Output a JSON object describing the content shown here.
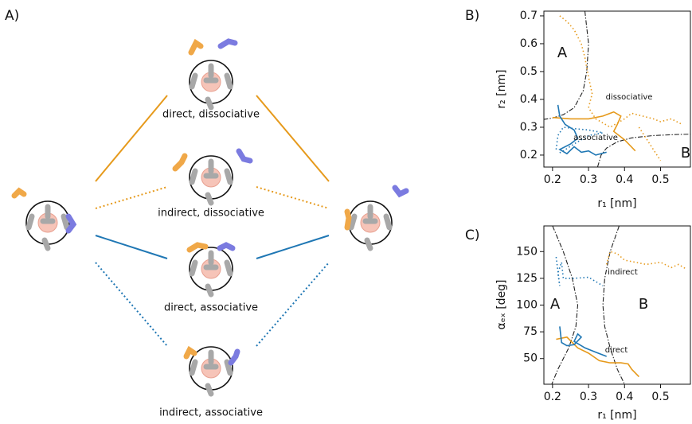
{
  "panel_labels": [
    "A)",
    "B)",
    "C)"
  ],
  "diagram": {
    "captions": [
      "direct, dissociative",
      "indirect, dissociative",
      "direct, associative",
      "indirect, associative"
    ]
  },
  "chart_data": [
    {
      "type": "line",
      "x_label": "r₁ [nm]",
      "y_label": "r₂ [nm]",
      "xlim": [
        0.176,
        0.583
      ],
      "ylim": [
        0.157,
        0.717
      ],
      "xticks": [
        0.2,
        0.3,
        0.4,
        0.5
      ],
      "yticks": [
        0.2,
        0.3,
        0.4,
        0.5,
        0.6,
        0.7
      ],
      "annotations": [
        "A",
        "B",
        "dissociative",
        "associative"
      ],
      "series": [
        {
          "color": "#222222",
          "dash": "dashed",
          "x": [
            0.29,
            0.3,
            0.295,
            0.285,
            0.26,
            0.23,
            0.2,
            0.176
          ],
          "values": [
            0.717,
            0.6,
            0.5,
            0.43,
            0.37,
            0.345,
            0.333,
            0.328
          ]
        },
        {
          "color": "#222222",
          "dash": "dashed",
          "x": [
            0.325,
            0.335,
            0.35,
            0.38,
            0.42,
            0.48,
            0.55,
            0.583
          ],
          "values": [
            0.157,
            0.2,
            0.225,
            0.248,
            0.262,
            0.27,
            0.274,
            0.275
          ]
        },
        {
          "color": "#e69a1c",
          "dash": "dotted",
          "x": [
            0.22,
            0.24,
            0.26,
            0.28,
            0.29,
            0.3,
            0.31,
            0.3,
            0.32,
            0.36,
            0.4,
            0.42,
            0.45,
            0.48,
            0.5,
            0.53,
            0.56
          ],
          "values": [
            0.7,
            0.68,
            0.65,
            0.6,
            0.55,
            0.48,
            0.42,
            0.37,
            0.33,
            0.3,
            0.33,
            0.35,
            0.34,
            0.33,
            0.32,
            0.33,
            0.31
          ]
        },
        {
          "color": "#e69a1c",
          "dash": "dotted",
          "x": [
            0.44,
            0.46,
            0.48,
            0.5
          ],
          "values": [
            0.3,
            0.26,
            0.22,
            0.18
          ]
        },
        {
          "color": "#e69a1c",
          "dash": "solid",
          "x": [
            0.2,
            0.25,
            0.3,
            0.34,
            0.37,
            0.39,
            0.38,
            0.37,
            0.4,
            0.43
          ],
          "values": [
            0.335,
            0.33,
            0.33,
            0.34,
            0.355,
            0.34,
            0.31,
            0.285,
            0.255,
            0.215
          ]
        },
        {
          "color": "#1f77b4",
          "dash": "dotted",
          "x": [
            0.21,
            0.215,
            0.23,
            0.26,
            0.3,
            0.34,
            0.3,
            0.26,
            0.23,
            0.215
          ],
          "values": [
            0.22,
            0.27,
            0.3,
            0.295,
            0.29,
            0.28,
            0.27,
            0.24,
            0.215,
            0.205
          ]
        },
        {
          "color": "#1f77b4",
          "dash": "solid",
          "x": [
            0.215,
            0.22,
            0.235,
            0.26,
            0.27,
            0.25,
            0.22,
            0.24,
            0.26,
            0.28,
            0.3,
            0.32,
            0.35
          ],
          "values": [
            0.38,
            0.34,
            0.31,
            0.29,
            0.26,
            0.24,
            0.22,
            0.205,
            0.23,
            0.21,
            0.215,
            0.2,
            0.21
          ]
        }
      ]
    },
    {
      "type": "line",
      "x_label": "r₁ [nm]",
      "y_label": "αₑₓ [deg]",
      "xlim": [
        0.176,
        0.583
      ],
      "ylim": [
        26,
        174
      ],
      "xticks": [
        0.2,
        0.3,
        0.4,
        0.5
      ],
      "yticks": [
        50,
        75,
        100,
        125,
        150
      ],
      "annotations": [
        "A",
        "B",
        "indirect",
        "direct"
      ],
      "series": [
        {
          "color": "#222222",
          "dash": "dashed",
          "x": [
            0.2,
            0.23,
            0.255,
            0.27,
            0.265,
            0.245,
            0.215,
            0.198
          ],
          "values": [
            174,
            150,
            125,
            100,
            80,
            60,
            40,
            26
          ]
        },
        {
          "color": "#222222",
          "dash": "dashed",
          "x": [
            0.385,
            0.36,
            0.345,
            0.34,
            0.345,
            0.36,
            0.38,
            0.4
          ],
          "values": [
            174,
            150,
            125,
            100,
            80,
            60,
            40,
            26
          ]
        },
        {
          "color": "#e69a1c",
          "dash": "dotted",
          "x": [
            0.35,
            0.36,
            0.38,
            0.4,
            0.43,
            0.46,
            0.5,
            0.53,
            0.55,
            0.57
          ],
          "values": [
            138,
            150,
            148,
            142,
            140,
            138,
            140,
            135,
            138,
            134
          ]
        },
        {
          "color": "#1f77b4",
          "dash": "dotted",
          "x": [
            0.21,
            0.22,
            0.215,
            0.225,
            0.23,
            0.26,
            0.3,
            0.34
          ],
          "values": [
            145,
            118,
            130,
            140,
            125,
            125,
            126,
            118
          ]
        },
        {
          "color": "#e69a1c",
          "dash": "solid",
          "x": [
            0.21,
            0.24,
            0.27,
            0.3,
            0.33,
            0.36,
            0.39,
            0.41,
            0.42,
            0.44
          ],
          "values": [
            68,
            70,
            60,
            55,
            48,
            46,
            46,
            45,
            40,
            33
          ]
        },
        {
          "color": "#1f77b4",
          "dash": "solid",
          "x": [
            0.22,
            0.225,
            0.24,
            0.26,
            0.28,
            0.27,
            0.26,
            0.29,
            0.32,
            0.35
          ],
          "values": [
            80,
            65,
            62,
            63,
            70,
            73,
            66,
            60,
            56,
            52
          ]
        }
      ]
    }
  ]
}
